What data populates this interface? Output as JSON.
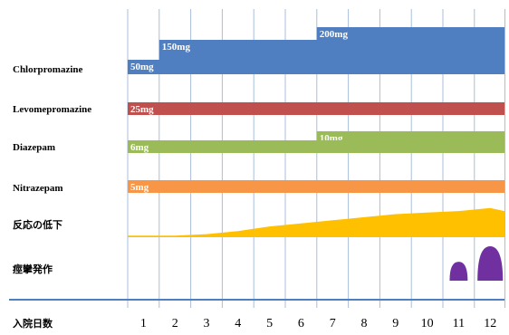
{
  "chart_data": {
    "type": "timeline",
    "x_axis_label": "入院日数",
    "days": [
      "1",
      "2",
      "3",
      "4",
      "5",
      "6",
      "7",
      "8",
      "9",
      "10",
      "11",
      "12"
    ],
    "rows": [
      {
        "label": "Chlorpromazine",
        "color": "#4f7fc0",
        "segments": [
          {
            "start_day": 1,
            "end_day": 12,
            "dose": "50mg"
          },
          {
            "start_day": 2,
            "end_day": 12,
            "dose": "150mg"
          },
          {
            "start_day": 7,
            "end_day": 12,
            "dose": "200mg"
          }
        ]
      },
      {
        "label": "Levomepromazine",
        "color": "#c0504d",
        "segments": [
          {
            "start_day": 1,
            "end_day": 12,
            "dose": "25mg"
          }
        ]
      },
      {
        "label": "Diazepam",
        "color": "#9bbb59",
        "segments": [
          {
            "start_day": 1,
            "end_day": 12,
            "dose": "6mg"
          },
          {
            "start_day": 7,
            "end_day": 12,
            "dose": "10mg"
          }
        ]
      },
      {
        "label": "Nitrazepam",
        "color": "#f79646",
        "segments": [
          {
            "start_day": 1,
            "end_day": 12,
            "dose": "5mg"
          }
        ]
      }
    ],
    "area_row": {
      "label": "反応の低下",
      "color": "#ffc000",
      "series": [
        {
          "day": 1,
          "level": 0.05
        },
        {
          "day": 2,
          "level": 0.05
        },
        {
          "day": 3,
          "level": 0.1
        },
        {
          "day": 4,
          "level": 0.2
        },
        {
          "day": 5,
          "level": 0.35
        },
        {
          "day": 6,
          "level": 0.45
        },
        {
          "day": 7,
          "level": 0.55
        },
        {
          "day": 8,
          "level": 0.65
        },
        {
          "day": 9,
          "level": 0.75
        },
        {
          "day": 10,
          "level": 0.8
        },
        {
          "day": 11,
          "level": 0.85
        },
        {
          "day": 12,
          "level": 0.95
        }
      ]
    },
    "event_row": {
      "label": "痙攣発作",
      "color": "#7030a0",
      "events": [
        {
          "day": 11,
          "intensity": 0.55
        },
        {
          "day": 12,
          "intensity": 1.0
        }
      ]
    }
  }
}
